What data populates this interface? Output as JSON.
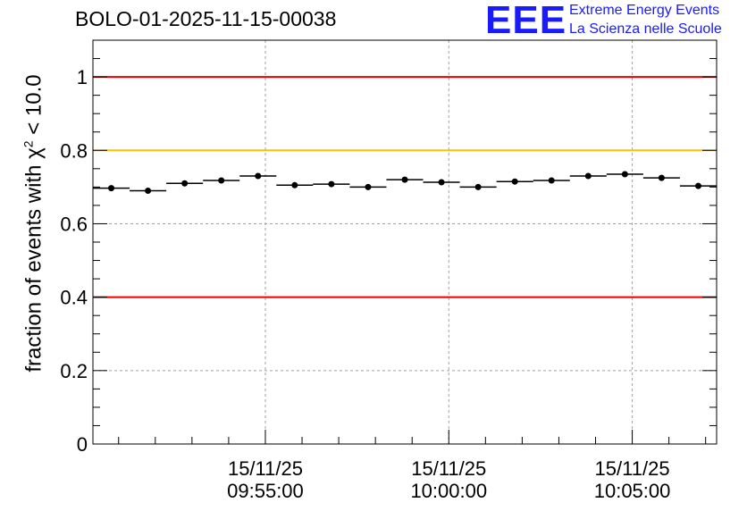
{
  "header": {
    "run_title": "BOLO-01-2025-11-15-00038"
  },
  "logo": {
    "mark": "EEE",
    "line1": "Extreme Energy Events",
    "line2": "La Scienza nelle Scuole"
  },
  "chart_data": {
    "type": "scatter",
    "title": "BOLO-01-2025-11-15-00038",
    "ylabel_prefix": "fraction of events with χ",
    "ylabel_sup": "2",
    "ylabel_suffix": " < 10.0",
    "ylim": [
      0,
      1.1
    ],
    "yticks": [
      0,
      0.2,
      0.4,
      0.6,
      0.8,
      1
    ],
    "ytick_labels": [
      "0",
      "0.2",
      "0.4",
      "0.6",
      "0.8",
      "1"
    ],
    "xlim_minutes": [
      -4.7,
      12.3
    ],
    "xtick_minutes": [
      0,
      5,
      10
    ],
    "xtick_labels": [
      {
        "date": "15/11/25",
        "time": "09:55:00"
      },
      {
        "date": "15/11/25",
        "time": "10:00:00"
      },
      {
        "date": "15/11/25",
        "time": "10:05:00"
      }
    ],
    "grid": true,
    "points_x_minutes": [
      -4.2,
      -3.2,
      -2.2,
      -1.2,
      -0.2,
      0.8,
      1.8,
      2.8,
      3.8,
      4.8,
      5.8,
      6.8,
      7.8,
      8.8,
      9.8,
      10.8,
      11.8
    ],
    "points_y": [
      0.697,
      0.69,
      0.71,
      0.718,
      0.73,
      0.705,
      0.708,
      0.7,
      0.72,
      0.713,
      0.7,
      0.715,
      0.718,
      0.73,
      0.735,
      0.725,
      0.703
    ],
    "reference_lines": [
      {
        "y": 1.0,
        "color": "#ee0000"
      },
      {
        "y": 0.8,
        "color": "#ffc000"
      },
      {
        "y": 0.4,
        "color": "#ee0000"
      }
    ]
  }
}
